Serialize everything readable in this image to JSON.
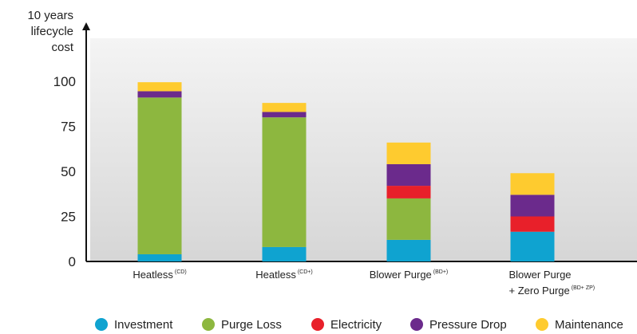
{
  "chart_data": {
    "type": "bar",
    "stacked": true,
    "ylabel": [
      "10 years",
      "lifecycle",
      "cost"
    ],
    "ylim": [
      0,
      115
    ],
    "yticks": [
      0,
      25,
      50,
      75,
      100
    ],
    "grid": false,
    "legend_position": "bottom",
    "categories": [
      {
        "lines": [
          {
            "text": "Heatless",
            "sup": "(CD)"
          }
        ]
      },
      {
        "lines": [
          {
            "text": "Heatless",
            "sup": "(CD+)"
          }
        ]
      },
      {
        "lines": [
          {
            "text": "Blower Purge",
            "sup": "(BD+)"
          }
        ]
      },
      {
        "lines": [
          {
            "text": "Blower Purge",
            "sup": ""
          },
          {
            "text": "+ Zero Purge",
            "sup": "(BD+ ZP)"
          }
        ]
      }
    ],
    "series": [
      {
        "name": "Investment",
        "color": "#0FA3D0",
        "values": [
          4,
          8,
          12,
          16.5
        ]
      },
      {
        "name": "Purge Loss",
        "color": "#8DB73F",
        "values": [
          87,
          72,
          23,
          0
        ]
      },
      {
        "name": "Electricity",
        "color": "#E8202A",
        "values": [
          0,
          0,
          7,
          8.5
        ]
      },
      {
        "name": "Pressure Drop",
        "color": "#6B2A8C",
        "values": [
          3.5,
          3,
          12,
          12
        ]
      },
      {
        "name": "Maintenance",
        "color": "#FECB2F",
        "values": [
          5,
          5,
          12,
          12
        ]
      }
    ]
  }
}
